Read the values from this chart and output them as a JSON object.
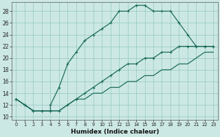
{
  "title": "",
  "xlabel": "Humidex (Indice chaleur)",
  "bg_color": "#cce8e4",
  "grid_color": "#9accc6",
  "line_color": "#1a6b5a",
  "xlim": [
    -0.5,
    23.5
  ],
  "ylim": [
    9.5,
    29.5
  ],
  "xticks": [
    0,
    1,
    2,
    3,
    4,
    5,
    6,
    7,
    8,
    9,
    10,
    11,
    12,
    13,
    14,
    15,
    16,
    17,
    18,
    19,
    20,
    21,
    22,
    23
  ],
  "yticks": [
    10,
    12,
    14,
    16,
    18,
    20,
    22,
    24,
    26,
    28
  ],
  "curve1_x": [
    0,
    1,
    2,
    3,
    4,
    4,
    5,
    6,
    7,
    8,
    9,
    10,
    11,
    12,
    13,
    14,
    15,
    16,
    17,
    18,
    19,
    20,
    21,
    22,
    23
  ],
  "curve1_y": [
    13,
    12,
    11,
    11,
    11,
    12,
    15,
    19,
    21,
    23,
    24,
    25,
    26,
    28,
    28,
    29,
    29,
    28,
    28,
    28,
    26,
    24,
    22,
    22,
    22
  ],
  "curve2_x": [
    0,
    1,
    2,
    3,
    4,
    5,
    6,
    7,
    8,
    9,
    10,
    11,
    12,
    13,
    14,
    15,
    16,
    17,
    18,
    19,
    20,
    21,
    22,
    23
  ],
  "curve2_y": [
    13,
    12,
    11,
    11,
    11,
    11,
    12,
    13,
    14,
    15,
    16,
    17,
    18,
    19,
    19,
    20,
    20,
    21,
    21,
    22,
    22,
    22,
    22,
    22
  ],
  "curve3_x": [
    0,
    1,
    2,
    3,
    4,
    5,
    6,
    7,
    8,
    9,
    10,
    11,
    12,
    13,
    14,
    15,
    16,
    17,
    18,
    19,
    20,
    21,
    22,
    23
  ],
  "curve3_y": [
    13,
    12,
    11,
    11,
    11,
    11,
    12,
    13,
    13,
    14,
    14,
    15,
    15,
    16,
    16,
    17,
    17,
    18,
    18,
    19,
    19,
    20,
    21,
    21
  ]
}
